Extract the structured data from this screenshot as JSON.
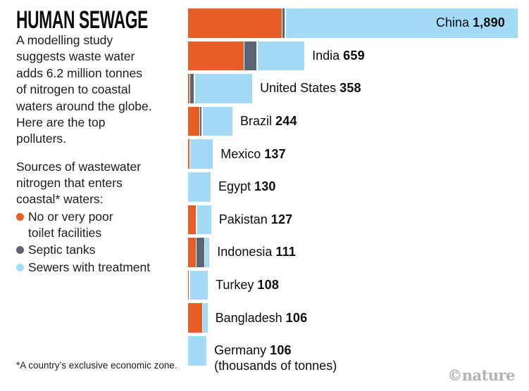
{
  "title": "HUMAN SEWAGE",
  "intro": "A modelling study\nsuggests waste water\nadds 6.2 million tonnes\nof nitrogen to coastal\nwaters around the globe.\nHere are the top\npolluters.",
  "legend": {
    "intro": "Sources of wastewater\nnitrogen that enters\ncoastal* waters:",
    "items": [
      {
        "name": "no-toilet-facilities",
        "label": "No or very poor\ntoilet facilities",
        "color": "#e85d26"
      },
      {
        "name": "septic-tanks",
        "label": "Septic tanks",
        "color": "#5a6472"
      },
      {
        "name": "sewers-with-treatment",
        "label": "Sewers with treatment",
        "color": "#a3daf5"
      }
    ]
  },
  "footnote": "*A country’s exclusive economic zone.",
  "credit": "©nature",
  "chart_data": {
    "type": "bar",
    "orientation": "horizontal",
    "unit": "thousands of tonnes",
    "title": "HUMAN SEWAGE",
    "xlim": [
      0,
      1890
    ],
    "grid": false,
    "legend_position": "left",
    "series_names": [
      "No or very poor toilet facilities",
      "Septic tanks",
      "Sewers with treatment"
    ],
    "colors": {
      "no_toilet": "#e85d26",
      "septic": "#5a6472",
      "sewers": "#a3daf5"
    },
    "rows": [
      {
        "country": "China",
        "total": 1890,
        "display": "1,890",
        "segments": [
          540,
          12,
          1338
        ],
        "label_inside": true
      },
      {
        "country": "India",
        "total": 659,
        "display": "659",
        "segments": [
          321,
          69,
          269
        ]
      },
      {
        "country": "United States",
        "total": 358,
        "display": "358",
        "segments": [
          8,
          20,
          330
        ]
      },
      {
        "country": "Brazil",
        "total": 244,
        "display": "244",
        "segments": [
          65,
          8,
          171
        ]
      },
      {
        "country": "Mexico",
        "total": 137,
        "display": "137",
        "segments": [
          8,
          0,
          129
        ]
      },
      {
        "country": "Egypt",
        "total": 130,
        "display": "130",
        "segments": [
          0,
          0,
          130
        ]
      },
      {
        "country": "Pakistan",
        "total": 127,
        "display": "127",
        "segments": [
          45,
          0,
          82
        ]
      },
      {
        "country": "Indonesia",
        "total": 111,
        "display": "111",
        "segments": [
          44,
          42,
          25
        ]
      },
      {
        "country": "Turkey",
        "total": 108,
        "display": "108",
        "segments": [
          6,
          0,
          102
        ]
      },
      {
        "country": "Bangladesh",
        "total": 106,
        "display": "106",
        "segments": [
          81,
          0,
          25
        ]
      },
      {
        "country": "Germany",
        "total": 106,
        "display": "106",
        "segments": [
          0,
          0,
          106
        ],
        "note": "(thousands of tonnes)"
      }
    ]
  }
}
